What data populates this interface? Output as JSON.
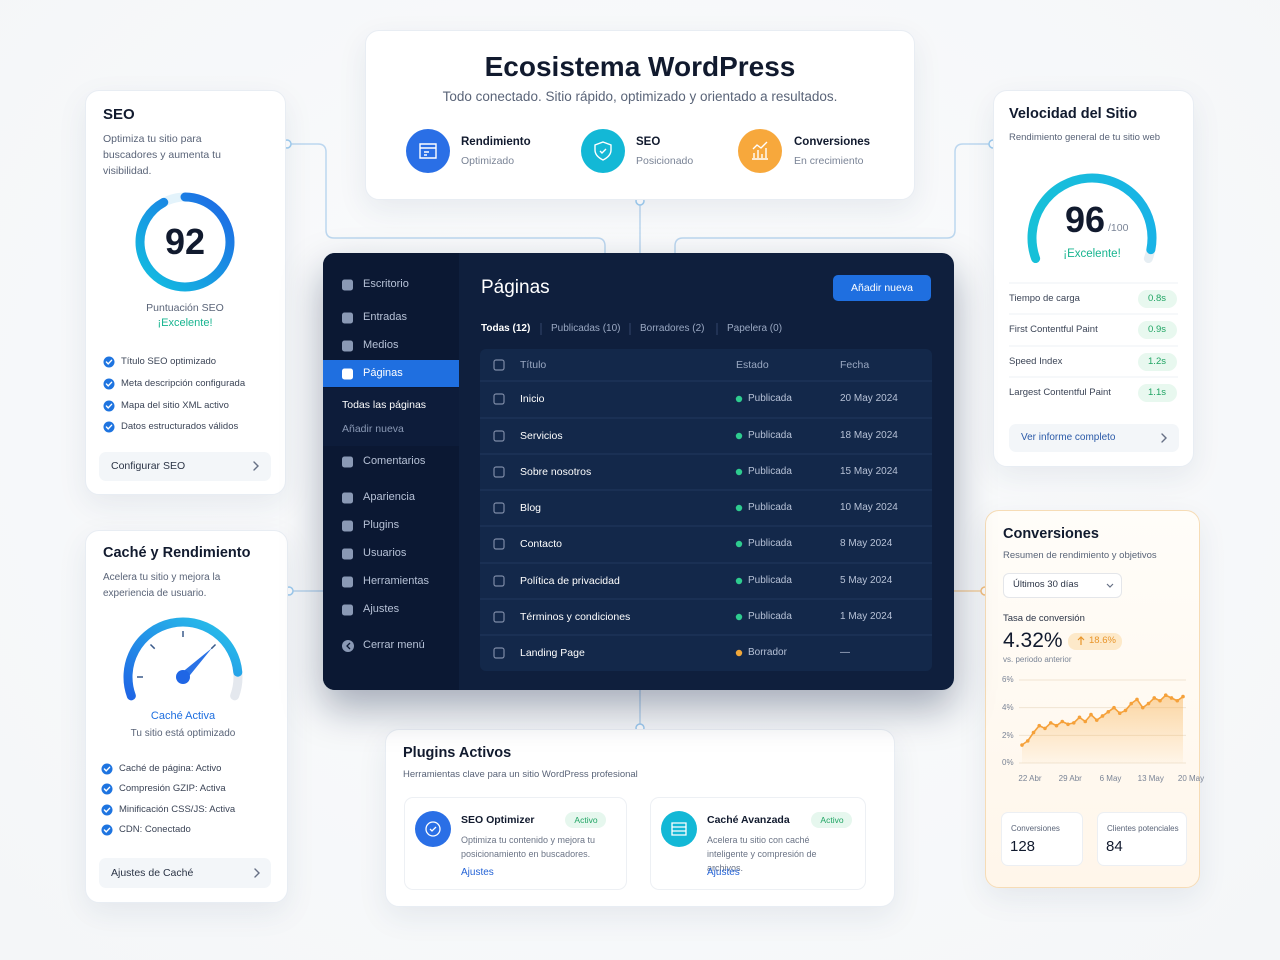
{
  "header": {
    "title": "Ecosistema WordPress",
    "subtitle": "Todo conectado. Sitio rápido, optimizado y orientado a resultados.",
    "items": [
      {
        "title": "Rendimiento",
        "sub": "Optimizado",
        "color": "#2a6fe6"
      },
      {
        "title": "SEO",
        "sub": "Posicionado",
        "color": "#13b8d6"
      },
      {
        "title": "Conversiones",
        "sub": "En crecimiento",
        "color": "#f7a83c"
      }
    ]
  },
  "seo": {
    "title": "SEO",
    "description": "Optimiza tu sitio para buscadores y aumenta tu visibilidad.",
    "score": 92,
    "score_label": "Puntuación SEO",
    "rating": "¡Excelente!",
    "checks": [
      "Título SEO optimizado",
      "Meta descripción configurada",
      "Mapa del sitio XML activo",
      "Datos estructurados válidos"
    ],
    "button": "Configurar SEO"
  },
  "cache": {
    "title": "Caché y Rendimiento",
    "description": "Acelera tu sitio y mejora la experiencia de usuario.",
    "status": "Caché Activa",
    "status_sub": "Tu sitio está optimizado",
    "checks": [
      "Caché de página: Activo",
      "Compresión GZIP: Activa",
      "Minificación CSS/JS: Activa",
      "CDN: Conectado"
    ],
    "button": "Ajustes de Caché"
  },
  "speed": {
    "title": "Velocidad del Sitio",
    "subtitle": "Rendimiento general de tu sitio web",
    "score": 96,
    "score_suffix": "/100",
    "rating": "¡Excelente!",
    "metrics": [
      {
        "label": "Tiempo de carga",
        "value": "0.8s"
      },
      {
        "label": "First Contentful Paint",
        "value": "0.9s"
      },
      {
        "label": "Speed Index",
        "value": "1.2s"
      },
      {
        "label": "Largest Contentful Paint",
        "value": "1.1s"
      }
    ],
    "link": "Ver informe completo"
  },
  "admin": {
    "menu": [
      "Escritorio",
      "Entradas",
      "Medios",
      "Páginas",
      "Comentarios",
      "Apariencia",
      "Plugins",
      "Usuarios",
      "Herramientas",
      "Ajustes"
    ],
    "submenu": [
      "Todas las páginas",
      "Añadir nueva"
    ],
    "close": "Cerrar menú",
    "page_title": "Páginas",
    "add_button": "Añadir nueva",
    "tabs": [
      "Todas (12)",
      "Publicadas (10)",
      "Borradores (2)",
      "Papelera (0)"
    ],
    "columns": [
      "Título",
      "Estado",
      "Fecha"
    ],
    "rows": [
      {
        "title": "Inicio",
        "status": "Publicada",
        "date": "20 May 2024",
        "color": "#2ecc8f"
      },
      {
        "title": "Servicios",
        "status": "Publicada",
        "date": "18 May 2024",
        "color": "#2ecc8f"
      },
      {
        "title": "Sobre nosotros",
        "status": "Publicada",
        "date": "15 May 2024",
        "color": "#2ecc8f"
      },
      {
        "title": "Blog",
        "status": "Publicada",
        "date": "10 May 2024",
        "color": "#2ecc8f"
      },
      {
        "title": "Contacto",
        "status": "Publicada",
        "date": "8 May 2024",
        "color": "#2ecc8f"
      },
      {
        "title": "Política de privacidad",
        "status": "Publicada",
        "date": "5 May 2024",
        "color": "#2ecc8f"
      },
      {
        "title": "Términos y condiciones",
        "status": "Publicada",
        "date": "1 May 2024",
        "color": "#2ecc8f"
      },
      {
        "title": "Landing Page",
        "status": "Borrador",
        "date": "—",
        "color": "#f0a73a"
      }
    ]
  },
  "plugins": {
    "title": "Plugins Activos",
    "subtitle": "Herramientas clave para un sitio WordPress profesional",
    "items": [
      {
        "name": "SEO Optimizer",
        "badge": "Activo",
        "description": "Optimiza tu contenido y mejora tu posicionamiento en buscadores.",
        "link": "Ajustes",
        "color": "#2a6fe6"
      },
      {
        "name": "Caché Avanzada",
        "badge": "Activo",
        "description": "Acelera tu sitio con caché inteligente y compresión de archivos.",
        "link": "Ajustes",
        "color": "#13b8d6"
      }
    ]
  },
  "conversions": {
    "title": "Conversiones",
    "subtitle": "Resumen de rendimiento y objetivos",
    "period": "Últimos 30 días",
    "rate_label": "Tasa de conversión",
    "rate": "4.32%",
    "change": "18.6%",
    "change_note": "vs. periodo anterior",
    "stats": [
      {
        "label": "Conversiones",
        "value": "128"
      },
      {
        "label": "Clientes potenciales",
        "value": "84"
      }
    ]
  },
  "chart_data": {
    "type": "area",
    "categories": [
      "22 Abr",
      null,
      null,
      null,
      null,
      null,
      null,
      "29 Abr",
      null,
      null,
      null,
      null,
      null,
      null,
      "6 May",
      null,
      null,
      null,
      null,
      null,
      null,
      "13 May",
      null,
      null,
      null,
      null,
      null,
      null,
      "20 May"
    ],
    "values": [
      1.3,
      1.6,
      2.2,
      2.7,
      2.5,
      2.9,
      2.7,
      3.0,
      2.8,
      2.9,
      3.3,
      3.0,
      3.5,
      3.1,
      3.4,
      3.7,
      4.0,
      3.6,
      3.8,
      4.3,
      4.6,
      4.0,
      4.3,
      4.7,
      4.5,
      4.9,
      4.7,
      4.5,
      4.8
    ],
    "color": "#f5a13a",
    "ylim": [
      0,
      6
    ],
    "yticks": [
      {
        "value": 0,
        "label": "0%"
      },
      {
        "value": 2,
        "label": "2%"
      },
      {
        "value": 4,
        "label": "4%"
      },
      {
        "value": 6,
        "label": "6%"
      }
    ],
    "grid": true
  }
}
